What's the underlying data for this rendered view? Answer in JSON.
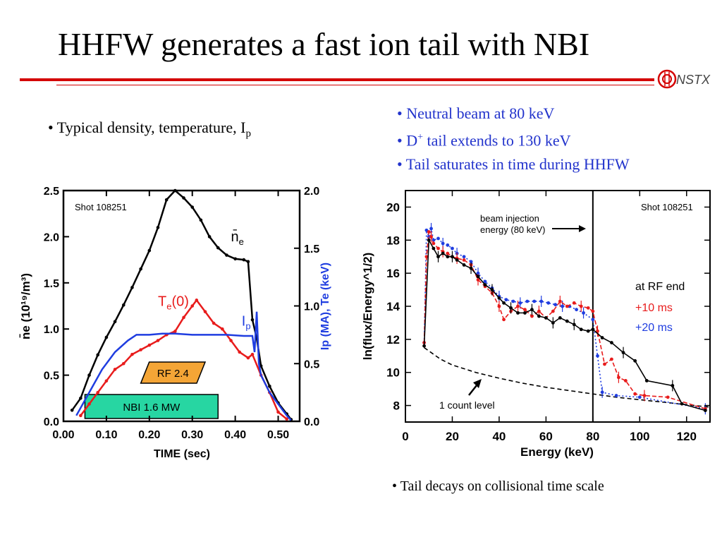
{
  "slide": {
    "title": "HHFW generates a fast ion tail with NBI",
    "bullet_left_prefix": "• Typical density, temperature, I",
    "bullet_left_sub": "p",
    "bullets_right": [
      {
        "text": "• Neutral beam at 80 keV"
      },
      {
        "pre": "• D",
        "sup": "+",
        "post": " tail extends to 130 keV"
      },
      {
        "text": "• Tail saturates in time during HHFW"
      }
    ],
    "bullet_bottom": "• Tail decays on collisional time scale",
    "logo_text": "NSTX",
    "colors": {
      "accent": "#d40000",
      "blue_text": "#2233cc"
    }
  },
  "chart_data": [
    {
      "type": "line",
      "shot_label": "Shot 108251",
      "xlabel": "TIME (sec)",
      "ylabel_left": "n̄e (10¹⁹/m³)",
      "ylabel_right": "Ip (MA), Te (keV)",
      "xlim": [
        0.0,
        0.55
      ],
      "ylim_left": [
        0.0,
        2.5
      ],
      "ylim_right": [
        0.0,
        2.0
      ],
      "x_ticks": [
        "0.00",
        "0.10",
        "0.20",
        "0.30",
        "0.40",
        "0.50"
      ],
      "y_ticks_left": [
        "0.0",
        "0.5",
        "1.0",
        "1.5",
        "2.0",
        "2.5"
      ],
      "y_ticks_right": [
        "0.0",
        "0.5",
        "1.0",
        "1.5",
        "2.0"
      ],
      "series": [
        {
          "name": "n̄e",
          "label_main": "n̄",
          "label_sub": "e",
          "color": "#000000",
          "axis": "left",
          "x": [
            0.02,
            0.04,
            0.06,
            0.08,
            0.1,
            0.12,
            0.14,
            0.16,
            0.18,
            0.2,
            0.22,
            0.24,
            0.26,
            0.28,
            0.3,
            0.32,
            0.34,
            0.36,
            0.38,
            0.4,
            0.42,
            0.43,
            0.44,
            0.45,
            0.46,
            0.48,
            0.5,
            0.52,
            0.53
          ],
          "y": [
            0.12,
            0.25,
            0.5,
            0.72,
            0.91,
            1.08,
            1.26,
            1.45,
            1.65,
            1.85,
            2.1,
            2.4,
            2.5,
            2.42,
            2.32,
            2.18,
            2.0,
            1.88,
            1.8,
            1.76,
            1.75,
            1.73,
            1.1,
            0.9,
            0.6,
            0.38,
            0.2,
            0.08,
            0.02
          ]
        },
        {
          "name": "Te(0)",
          "label_main": "T",
          "label_sub": "e",
          "label_post": "(0)",
          "color": "#e81c1c",
          "axis": "right",
          "x": [
            0.04,
            0.06,
            0.08,
            0.1,
            0.12,
            0.14,
            0.16,
            0.18,
            0.2,
            0.22,
            0.24,
            0.26,
            0.28,
            0.3,
            0.31,
            0.33,
            0.35,
            0.37,
            0.39,
            0.41,
            0.43,
            0.44,
            0.46,
            0.48,
            0.5,
            0.52
          ],
          "y": [
            0.05,
            0.15,
            0.25,
            0.35,
            0.45,
            0.5,
            0.58,
            0.62,
            0.66,
            0.7,
            0.75,
            0.78,
            0.9,
            1.0,
            1.05,
            0.95,
            0.85,
            0.8,
            0.7,
            0.6,
            0.55,
            0.58,
            0.4,
            0.25,
            0.08,
            0.02
          ]
        },
        {
          "name": "Ip",
          "label_main": "I",
          "label_sub": "p",
          "color": "#1f3de0",
          "axis": "right",
          "x": [
            0.03,
            0.06,
            0.09,
            0.12,
            0.15,
            0.17,
            0.2,
            0.23,
            0.26,
            0.3,
            0.34,
            0.38,
            0.42,
            0.44,
            0.445,
            0.45,
            0.455,
            0.46,
            0.48,
            0.5,
            0.52,
            0.53
          ],
          "y": [
            0.05,
            0.25,
            0.45,
            0.6,
            0.7,
            0.75,
            0.75,
            0.76,
            0.76,
            0.75,
            0.75,
            0.75,
            0.74,
            0.74,
            0.6,
            0.95,
            0.5,
            0.4,
            0.25,
            0.15,
            0.05,
            0.01
          ]
        }
      ],
      "annotations": [
        {
          "text": "RF 2.4",
          "x0": 0.18,
          "x1": 0.33,
          "color": "#f4a536"
        },
        {
          "text": "NBI 1.6 MW",
          "x0": 0.05,
          "x1": 0.36,
          "color": "#27d6a2"
        }
      ]
    },
    {
      "type": "line",
      "shot_label": "Shot 108251",
      "xlabel": "Energy (keV)",
      "ylabel": "ln(flux/Energy^1/2)",
      "xlim": [
        0,
        130
      ],
      "ylim": [
        7,
        21
      ],
      "x_ticks": [
        "0",
        "20",
        "40",
        "60",
        "80",
        "100",
        "120"
      ],
      "y_ticks": [
        "8",
        "10",
        "12",
        "14",
        "16",
        "18",
        "20"
      ],
      "beam_line_x": 80,
      "annotations": {
        "beam": [
          "beam injection",
          "energy (80 keV)"
        ],
        "count": "1 count level",
        "legend_title": "at RF end",
        "legend_red": "+10 ms",
        "legend_blue": "+20 ms"
      },
      "series": [
        {
          "name": "at RF end",
          "color": "#000000",
          "x": [
            8,
            10,
            12,
            14,
            16,
            18,
            20,
            22,
            25,
            28,
            31,
            34,
            37,
            40,
            42,
            45,
            48,
            51,
            54,
            57,
            60,
            63,
            66,
            69,
            72,
            75,
            78,
            80,
            84,
            88,
            93,
            98,
            103,
            114,
            118,
            128
          ],
          "y": [
            11.6,
            18.0,
            17.5,
            17.0,
            17.2,
            17.0,
            17.0,
            16.8,
            16.5,
            16.3,
            15.8,
            15.3,
            15.0,
            14.5,
            14.2,
            13.9,
            13.6,
            13.6,
            13.8,
            13.4,
            13.3,
            13.0,
            13.3,
            13.1,
            12.9,
            12.6,
            12.5,
            12.6,
            12.1,
            11.8,
            11.2,
            10.7,
            9.5,
            9.2,
            8.1,
            7.7
          ]
        },
        {
          "name": "+10 ms",
          "color": "#e81c1c",
          "x": [
            8,
            9,
            10,
            11,
            12,
            14,
            16,
            18,
            20,
            22,
            25,
            28,
            31,
            34,
            37,
            40,
            42,
            45,
            48,
            51,
            54,
            57,
            60,
            63,
            66,
            69,
            72,
            75,
            78,
            80,
            82,
            85,
            88,
            91,
            94,
            98,
            102,
            112,
            128
          ],
          "y": [
            11.8,
            17.0,
            18.5,
            18.2,
            17.8,
            17.5,
            17.3,
            17.2,
            17.0,
            16.9,
            16.8,
            16.5,
            15.6,
            15.2,
            14.8,
            14.0,
            13.2,
            13.7,
            14.0,
            13.8,
            13.4,
            13.7,
            13.3,
            13.7,
            14.3,
            14.0,
            14.2,
            14.0,
            13.9,
            13.7,
            12.5,
            10.5,
            10.8,
            9.7,
            9.5,
            8.7,
            8.6,
            8.5,
            7.8
          ]
        },
        {
          "name": "+20 ms",
          "color": "#1f3de0",
          "x": [
            8,
            9,
            10,
            11,
            12,
            14,
            16,
            18,
            20,
            22,
            25,
            28,
            31,
            34,
            37,
            40,
            43,
            46,
            49,
            52,
            55,
            58,
            61,
            64,
            67,
            70,
            73,
            76,
            80,
            82,
            84,
            90,
            100,
            128
          ],
          "y": [
            11.8,
            18.6,
            18.2,
            18.7,
            18.0,
            18.1,
            17.8,
            17.7,
            17.5,
            17.2,
            17.0,
            16.7,
            16.0,
            15.5,
            15.1,
            14.6,
            14.4,
            14.3,
            14.2,
            14.3,
            14.3,
            14.3,
            14.2,
            14.1,
            14.0,
            14.0,
            13.8,
            13.6,
            13.2,
            11.0,
            8.8,
            8.6,
            8.5,
            7.8
          ]
        },
        {
          "name": "1 count level",
          "color": "#000000",
          "dashed": true,
          "x": [
            8,
            15,
            20,
            30,
            40,
            50,
            60,
            70,
            80,
            90,
            100,
            110,
            120,
            130
          ],
          "y": [
            11.5,
            10.8,
            10.45,
            10.0,
            9.65,
            9.35,
            9.1,
            8.9,
            8.7,
            8.5,
            8.35,
            8.2,
            8.05,
            7.9
          ]
        }
      ]
    }
  ]
}
